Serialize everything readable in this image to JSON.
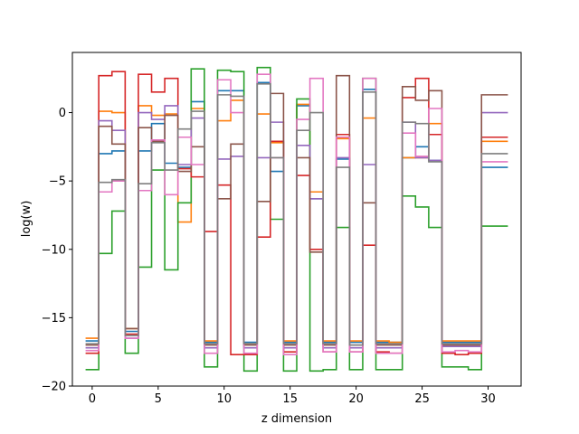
{
  "chart_data": {
    "type": "line",
    "drawstyle": "steps-mid",
    "title": "",
    "xlabel": "z dimension",
    "ylabel": "log(w)",
    "xlim": [
      -1.5,
      32.5
    ],
    "ylim": [
      -20,
      4.4
    ],
    "xticks": [
      0,
      5,
      10,
      15,
      20,
      25,
      30
    ],
    "yticks": [
      -20,
      -15,
      -10,
      -5,
      0
    ],
    "grid": false,
    "x": [
      0,
      1,
      2,
      3,
      4,
      5,
      6,
      7,
      8,
      9,
      10,
      11,
      12,
      13,
      14,
      15,
      16,
      17,
      18,
      19,
      20,
      21,
      22,
      23,
      24,
      25,
      26,
      27,
      28,
      29,
      30,
      31
    ],
    "series": [
      {
        "color": "#1f77b4",
        "values": [
          -16.7,
          -3.0,
          -2.8,
          -16.0,
          -2.8,
          -0.8,
          -3.7,
          -4.0,
          0.8,
          -16.8,
          1.6,
          1.6,
          -16.8,
          2.2,
          -4.3,
          -16.8,
          0.5,
          -6.3,
          -16.8,
          -3.4,
          -16.8,
          1.7,
          -16.8,
          -16.8,
          -3.3,
          -2.5,
          -3.5,
          -16.8,
          -16.8,
          -16.8,
          -4.0,
          -4.0
        ]
      },
      {
        "color": "#ff7f0e",
        "values": [
          -16.5,
          0.1,
          0.0,
          -15.8,
          0.5,
          -0.2,
          -0.1,
          -8.0,
          0.3,
          -16.7,
          -0.6,
          0.9,
          -16.9,
          -0.1,
          -2.2,
          -16.7,
          0.6,
          -5.8,
          -16.7,
          -1.9,
          -16.7,
          -0.4,
          -16.7,
          -16.8,
          -3.3,
          -3.3,
          -0.8,
          -16.7,
          -16.7,
          -16.7,
          -2.1,
          -2.1
        ]
      },
      {
        "color": "#2ca02c",
        "values": [
          -18.8,
          -10.3,
          -7.2,
          -17.6,
          -11.3,
          -4.2,
          -11.5,
          -6.6,
          3.2,
          -18.6,
          3.1,
          3.0,
          -18.9,
          3.3,
          -7.8,
          -18.9,
          1.0,
          -18.9,
          -18.8,
          -8.4,
          -18.8,
          2.5,
          -18.8,
          -18.8,
          -6.1,
          -6.9,
          -8.4,
          -18.6,
          -18.6,
          -18.8,
          -8.3,
          -8.3
        ]
      },
      {
        "color": "#d62728",
        "values": [
          -17.6,
          2.7,
          3.0,
          -16.2,
          2.8,
          1.5,
          2.5,
          -4.1,
          -4.7,
          -8.7,
          -5.3,
          -17.7,
          -17.7,
          -9.1,
          -2.1,
          -17.5,
          -4.6,
          -10.0,
          -17.5,
          -1.6,
          -17.5,
          -9.7,
          -17.5,
          -17.6,
          1.1,
          2.5,
          -1.6,
          -17.6,
          -17.7,
          -17.6,
          -1.8,
          -1.8
        ]
      },
      {
        "color": "#9467bd",
        "values": [
          -17.2,
          -0.6,
          -1.3,
          -16.5,
          0.0,
          -0.5,
          0.5,
          -3.8,
          -0.4,
          -17.2,
          -3.4,
          -3.2,
          -17.2,
          -3.3,
          -0.7,
          -17.2,
          -2.4,
          -6.3,
          -17.2,
          -3.3,
          -17.2,
          -3.8,
          -17.2,
          -17.2,
          -0.7,
          -3.3,
          -3.5,
          -17.1,
          -17.1,
          -17.1,
          0.0,
          0.0
        ]
      },
      {
        "color": "#8c564b",
        "values": [
          -17.0,
          -1.0,
          -2.3,
          -15.8,
          -1.1,
          -2.1,
          -0.2,
          -4.3,
          -2.5,
          -17.0,
          -6.3,
          -2.3,
          -17.0,
          -6.5,
          1.4,
          -17.0,
          -3.3,
          -10.2,
          -17.0,
          2.7,
          -17.0,
          -6.6,
          -17.0,
          -17.0,
          1.9,
          0.9,
          1.6,
          -17.0,
          -17.0,
          -17.0,
          1.3,
          1.3
        ]
      },
      {
        "color": "#e377c2",
        "values": [
          -17.4,
          -5.8,
          -5.0,
          -16.5,
          -5.7,
          -2.0,
          -6.0,
          -1.8,
          -3.8,
          -17.6,
          2.4,
          0.0,
          -17.6,
          2.8,
          -3.3,
          -17.7,
          -0.5,
          2.5,
          -17.5,
          -1.8,
          -17.5,
          2.5,
          -17.6,
          -17.6,
          -1.5,
          -3.2,
          0.3,
          -17.5,
          -17.4,
          -17.5,
          -3.6,
          -3.6
        ]
      },
      {
        "color": "#7f7f7f",
        "values": [
          -16.9,
          -5.1,
          -4.9,
          -16.3,
          -5.2,
          -2.2,
          -4.2,
          -1.2,
          0.1,
          -16.9,
          1.3,
          1.2,
          -16.9,
          2.1,
          -3.3,
          -16.9,
          -1.3,
          0.0,
          -16.9,
          -4.0,
          -17.0,
          1.5,
          -16.9,
          -16.9,
          -0.7,
          -0.8,
          -3.6,
          -16.9,
          -16.9,
          -16.9,
          -3.0,
          -3.0
        ]
      }
    ]
  }
}
